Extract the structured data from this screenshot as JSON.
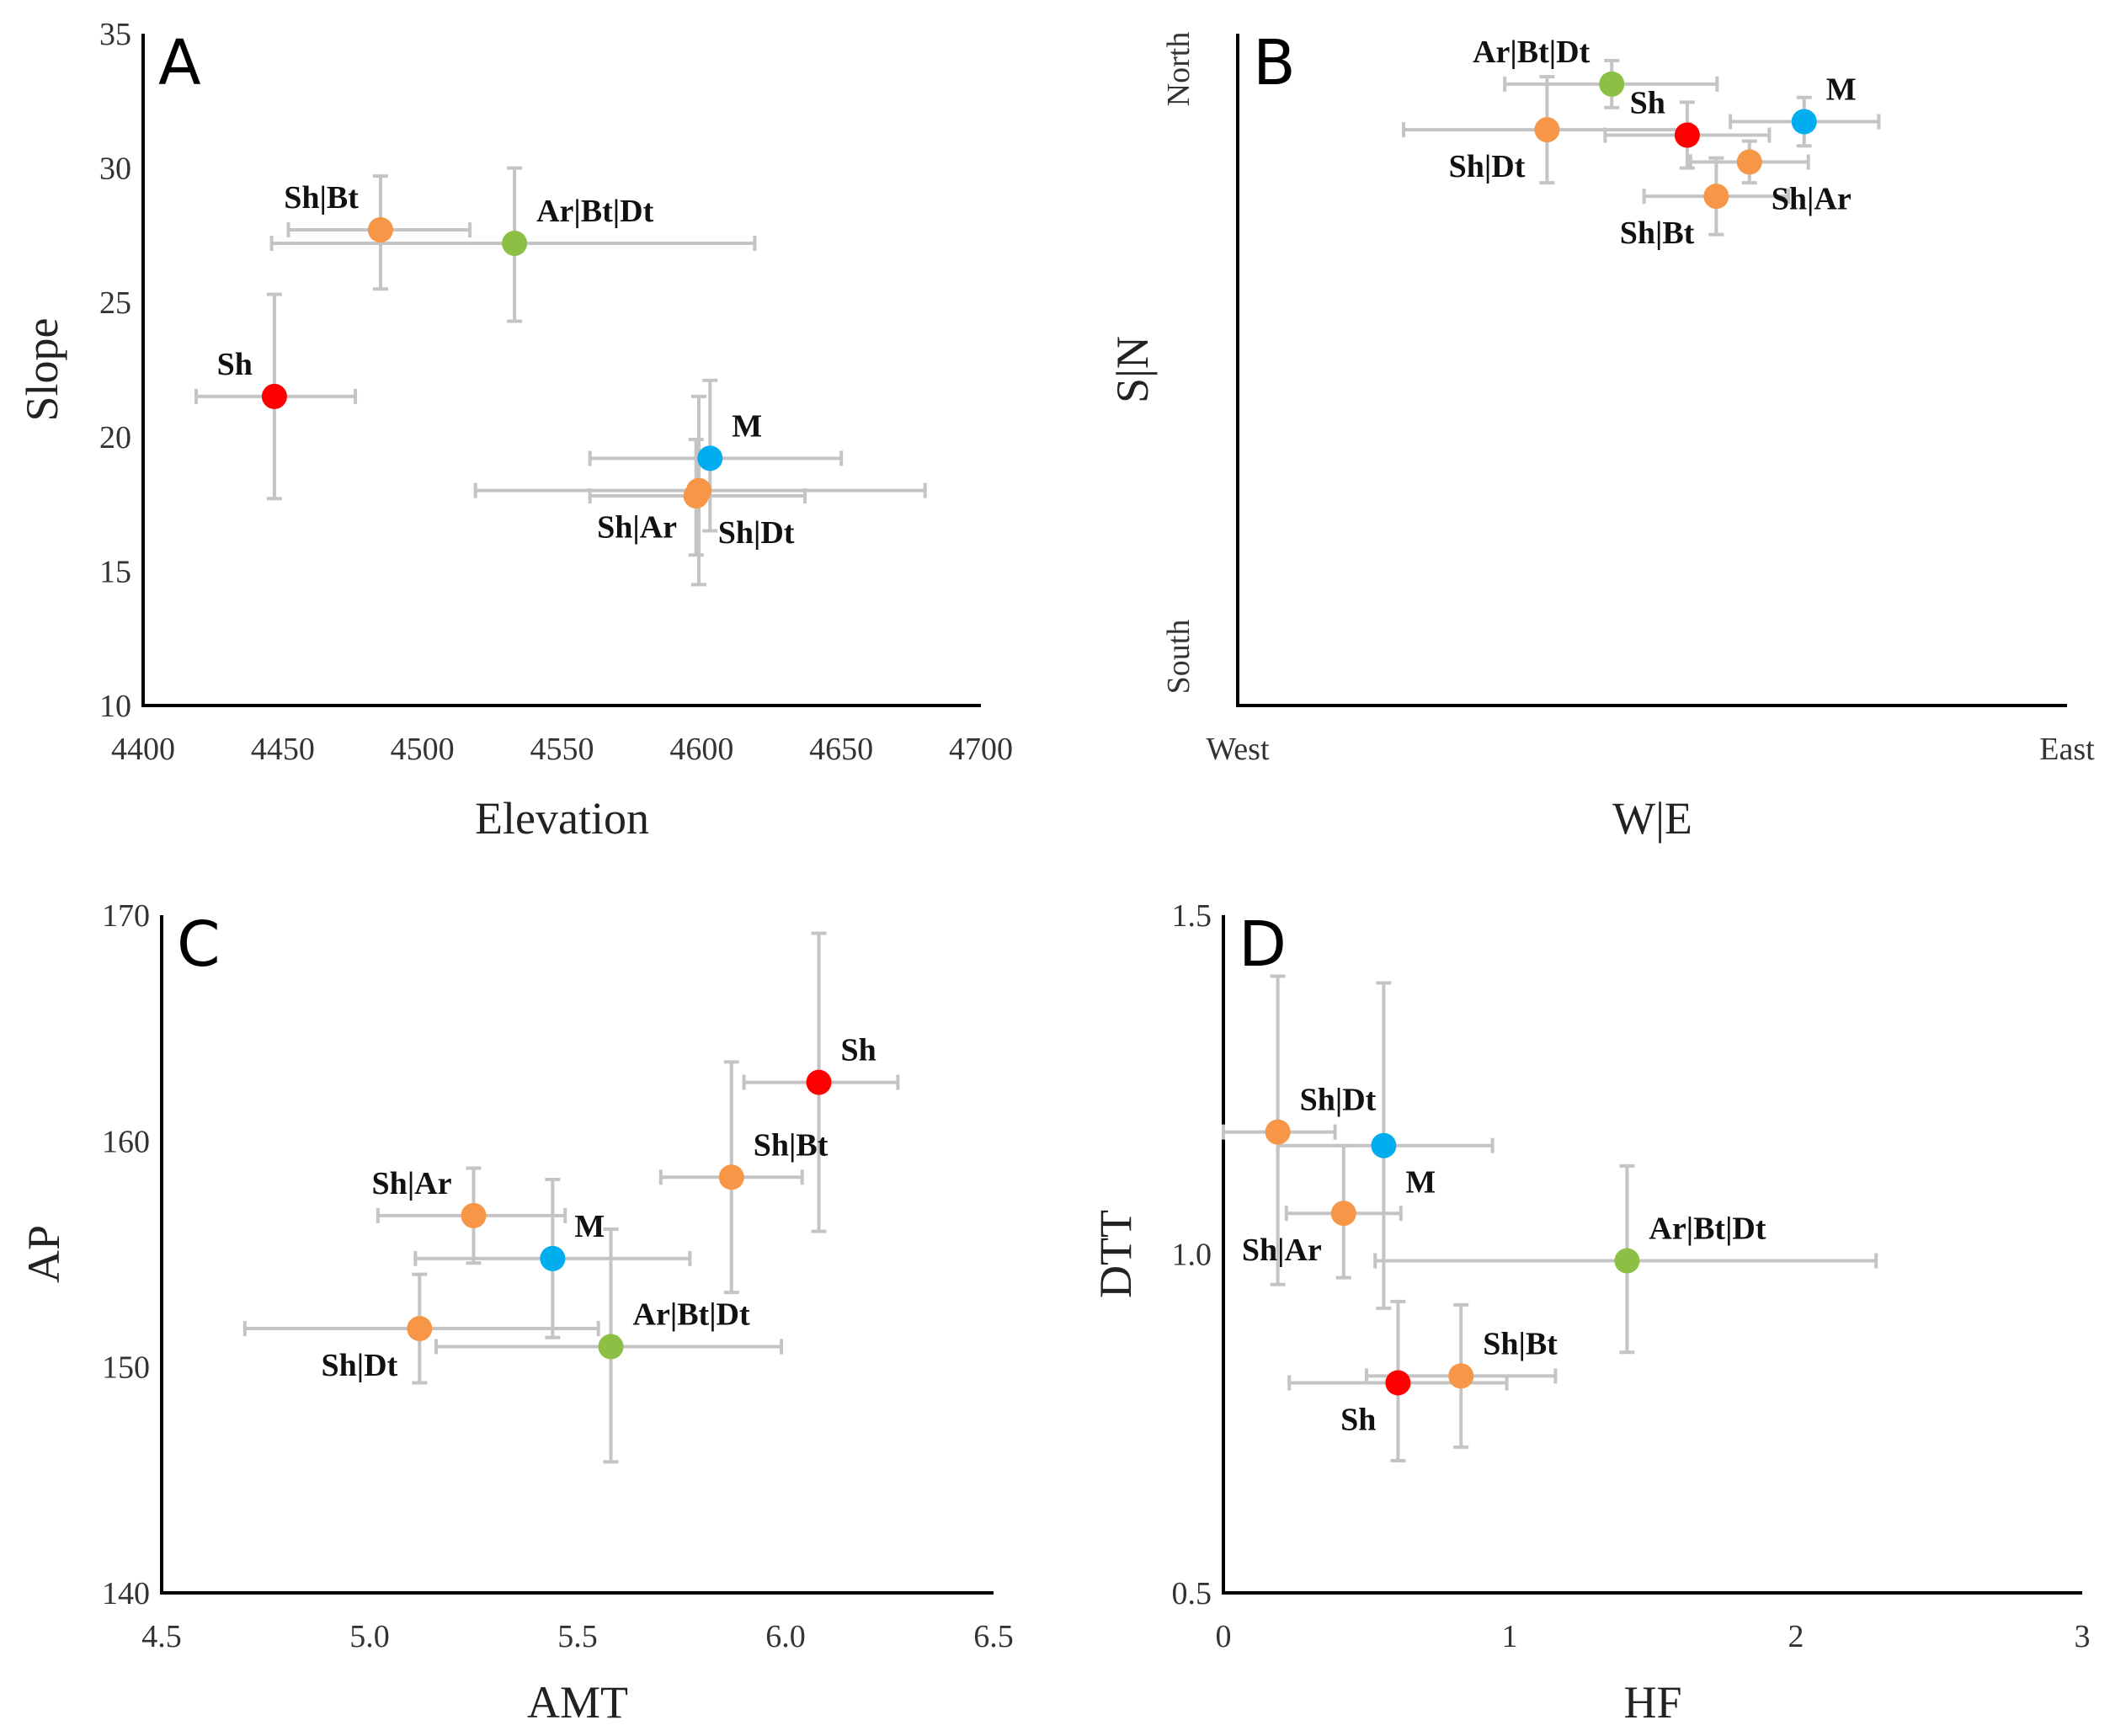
{
  "colors": {
    "Sh": "#ff0000",
    "M": "#00aeef",
    "hybrid": "#f79646",
    "Ar|Bt|Dt": "#8cbf44",
    "errorbar": "#c4c4c4"
  },
  "chart_data": [
    {
      "panel": "A",
      "type": "scatter",
      "xlabel": "Elevation",
      "ylabel": "Slope",
      "xlim": [
        4400,
        4700
      ],
      "ylim": [
        10,
        35
      ],
      "xticks": [
        "4400",
        "4450",
        "4500",
        "4550",
        "4600",
        "4650",
        "4700"
      ],
      "yticks": [
        "10",
        "15",
        "20",
        "25",
        "30",
        "35"
      ],
      "points": [
        {
          "name": "Sh",
          "group": "Sh",
          "x": 4447,
          "y": 21.5,
          "xerr": [
            4419,
            4476
          ],
          "yerr": [
            17.7,
            25.3
          ],
          "label_pos": "upper-left"
        },
        {
          "name": "Sh|Bt",
          "group": "hybrid",
          "x": 4485,
          "y": 27.7,
          "xerr": [
            4452,
            4517
          ],
          "yerr": [
            25.5,
            29.7
          ],
          "label_pos": "upper-left"
        },
        {
          "name": "Ar|Bt|Dt",
          "group": "Ar|Bt|Dt",
          "x": 4533,
          "y": 27.2,
          "xerr": [
            4446,
            4619
          ],
          "yerr": [
            24.3,
            30.0
          ],
          "label_pos": "upper-right"
        },
        {
          "name": "M",
          "group": "M",
          "x": 4603,
          "y": 19.2,
          "xerr": [
            4560,
            4650
          ],
          "yerr": [
            16.5,
            22.1
          ],
          "label_pos": "upper-right"
        },
        {
          "name": "Sh|Ar",
          "group": "hybrid",
          "x": 4599,
          "y": 18.0,
          "xerr": [
            4519,
            4680
          ],
          "yerr": [
            14.5,
            21.5
          ],
          "label_pos": "lower-left"
        },
        {
          "name": "Sh|Dt",
          "group": "hybrid",
          "x": 4598,
          "y": 17.8,
          "xerr": [
            4560,
            4637
          ],
          "yerr": [
            15.6,
            19.9
          ],
          "label_pos": "lower-right"
        }
      ]
    },
    {
      "panel": "B",
      "type": "scatter",
      "xlabel": "W|E",
      "ylabel": "S|N",
      "xlim": [
        0,
        1
      ],
      "ylim": [
        0,
        1
      ],
      "xticks": [
        "West",
        "East"
      ],
      "yticks": [
        "South",
        "North"
      ],
      "points": [
        {
          "name": "Ar|Bt|Dt",
          "group": "Ar|Bt|Dt",
          "x": 0.451,
          "y": 0.925,
          "xerr": [
            0.322,
            0.578
          ],
          "yerr": [
            0.89,
            0.96
          ],
          "label_pos": "upper-left"
        },
        {
          "name": "Sh|Dt",
          "group": "hybrid",
          "x": 0.373,
          "y": 0.857,
          "xerr": [
            0.2,
            0.546
          ],
          "yerr": [
            0.778,
            0.936
          ],
          "label_pos": "lower-left"
        },
        {
          "name": "Sh",
          "group": "Sh",
          "x": 0.542,
          "y": 0.849,
          "xerr": [
            0.443,
            0.641
          ],
          "yerr": [
            0.8,
            0.898
          ],
          "label_pos": "upper-left"
        },
        {
          "name": "M",
          "group": "M",
          "x": 0.683,
          "y": 0.869,
          "xerr": [
            0.594,
            0.773
          ],
          "yerr": [
            0.833,
            0.905
          ],
          "label_pos": "upper-right"
        },
        {
          "name": "Sh|Ar",
          "group": "hybrid",
          "x": 0.617,
          "y": 0.809,
          "xerr": [
            0.546,
            0.688
          ],
          "yerr": [
            0.778,
            0.84
          ],
          "label_pos": "lower-right"
        },
        {
          "name": "Sh|Bt",
          "group": "hybrid",
          "x": 0.577,
          "y": 0.758,
          "xerr": [
            0.49,
            0.664
          ],
          "yerr": [
            0.701,
            0.815
          ],
          "label_pos": "lower-left"
        }
      ]
    },
    {
      "panel": "C",
      "type": "scatter",
      "xlabel": "AMT",
      "ylabel": "AP",
      "xlim": [
        4.5,
        6.5
      ],
      "ylim": [
        140,
        170
      ],
      "xticks": [
        "4.5",
        "5.0",
        "5.5",
        "6.0",
        "6.5"
      ],
      "yticks": [
        "140",
        "150",
        "160",
        "170"
      ],
      "points": [
        {
          "name": "Sh",
          "group": "Sh",
          "x": 6.08,
          "y": 162.6,
          "xerr": [
            5.9,
            6.27
          ],
          "yerr": [
            156.0,
            169.2
          ],
          "label_pos": "upper-right"
        },
        {
          "name": "Sh|Bt",
          "group": "hybrid",
          "x": 5.87,
          "y": 158.4,
          "xerr": [
            5.7,
            6.04
          ],
          "yerr": [
            153.3,
            163.5
          ],
          "label_pos": "upper-right"
        },
        {
          "name": "Sh|Ar",
          "group": "hybrid",
          "x": 5.25,
          "y": 156.7,
          "xerr": [
            5.02,
            5.47
          ],
          "yerr": [
            154.6,
            158.8
          ],
          "label_pos": "upper-left"
        },
        {
          "name": "M",
          "group": "M",
          "x": 5.44,
          "y": 154.8,
          "xerr": [
            5.11,
            5.77
          ],
          "yerr": [
            151.3,
            158.3
          ],
          "label_pos": "upper-right"
        },
        {
          "name": "Sh|Dt",
          "group": "hybrid",
          "x": 5.12,
          "y": 151.7,
          "xerr": [
            4.7,
            5.55
          ],
          "yerr": [
            149.3,
            154.1
          ],
          "label_pos": "lower-left"
        },
        {
          "name": "Ar|Bt|Dt",
          "group": "Ar|Bt|Dt",
          "x": 5.58,
          "y": 150.9,
          "xerr": [
            5.16,
            5.99
          ],
          "yerr": [
            145.8,
            156.1
          ],
          "label_pos": "upper-right"
        }
      ]
    },
    {
      "panel": "D",
      "type": "scatter",
      "xlabel": "HF",
      "ylabel": "DTT",
      "xlim": [
        0,
        3
      ],
      "ylim": [
        0.5,
        1.5
      ],
      "xticks": [
        "0",
        "1",
        "2",
        "3"
      ],
      "yticks": [
        "0.5",
        "1.0",
        "1.5"
      ],
      "points": [
        {
          "name": "Sh|Dt",
          "group": "hybrid",
          "x": 0.19,
          "y": 1.18,
          "xerr": [
            0.0,
            0.39
          ],
          "yerr": [
            0.955,
            1.41
          ],
          "label_pos": "upper-right"
        },
        {
          "name": "M",
          "group": "M",
          "x": 0.56,
          "y": 1.16,
          "xerr": [
            0.19,
            0.94
          ],
          "yerr": [
            0.92,
            1.4
          ],
          "label_pos": "lower-right"
        },
        {
          "name": "Sh|Ar",
          "group": "hybrid",
          "x": 0.42,
          "y": 1.06,
          "xerr": [
            0.22,
            0.62
          ],
          "yerr": [
            0.965,
            1.16
          ],
          "label_pos": "lower-left"
        },
        {
          "name": "Ar|Bt|Dt",
          "group": "Ar|Bt|Dt",
          "x": 1.41,
          "y": 0.99,
          "xerr": [
            0.53,
            2.28
          ],
          "yerr": [
            0.855,
            1.13
          ],
          "label_pos": "upper-right"
        },
        {
          "name": "Sh|Bt",
          "group": "hybrid",
          "x": 0.83,
          "y": 0.82,
          "xerr": [
            0.5,
            1.16
          ],
          "yerr": [
            0.715,
            0.925
          ],
          "label_pos": "upper-right"
        },
        {
          "name": "Sh",
          "group": "Sh",
          "x": 0.61,
          "y": 0.81,
          "xerr": [
            0.23,
            0.99
          ],
          "yerr": [
            0.695,
            0.93
          ],
          "label_pos": "lower-left"
        }
      ]
    }
  ]
}
